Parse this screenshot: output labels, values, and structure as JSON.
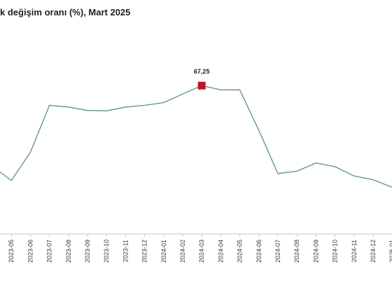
{
  "chart_data": {
    "type": "line",
    "title": "k değişim oranı (%), Mart 2025",
    "xlabel": "",
    "ylabel": "",
    "x": [
      "",
      "2023-05",
      "2023-06",
      "2023-07",
      "2023-08",
      "2023-09",
      "2023-10",
      "2023-11",
      "2023-12",
      "2024-01",
      "2024-02",
      "2024-03",
      "2024-04",
      "2024-05",
      "2024-06",
      "2024-07",
      "2024-08",
      "2024-09",
      "2024-10",
      "2024-11",
      "2024-12",
      "2025-01",
      ""
    ],
    "series": [
      {
        "values": [
          43.7,
          39.6,
          47.8,
          61.5,
          61.0,
          60.0,
          59.9,
          61.0,
          61.5,
          62.3,
          64.8,
          67.25,
          66.0,
          66.0,
          54.2,
          41.6,
          42.3,
          44.7,
          43.6,
          40.9,
          39.8,
          37.6,
          37.0
        ]
      }
    ],
    "highlight": {
      "index": 11,
      "label": "67,25",
      "color": "#c0142a"
    },
    "line_color": "#5c8f8c",
    "axis_color": "#c7c7c7",
    "ylim": [
      24,
      82
    ],
    "grid": false,
    "legend": "none"
  }
}
